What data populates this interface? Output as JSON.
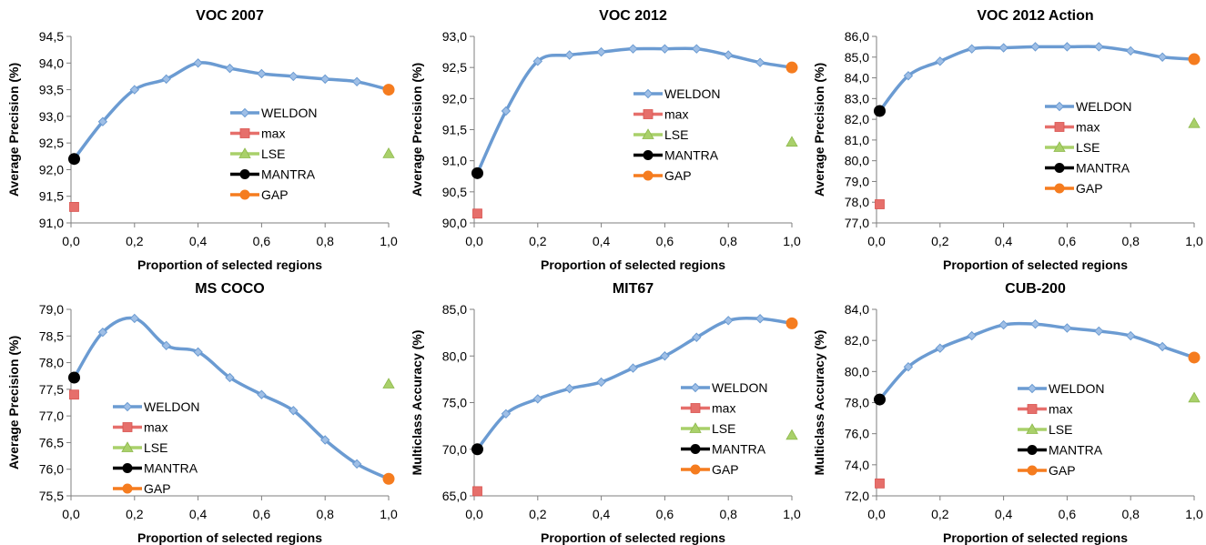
{
  "legend_labels": [
    "WELDON",
    "max",
    "LSE",
    "MANTRA",
    "GAP"
  ],
  "colors": {
    "weldon": "#6b9bd2",
    "weldon_marker": "#9fbfe6",
    "max": "#e66f6b",
    "lse": "#a9d06a",
    "mantra": "#000000",
    "gap": "#f57c1f"
  },
  "chart_data": [
    {
      "type": "line",
      "title": "VOC 2007",
      "xlabel": "Proportion of selected regions",
      "ylabel": "Average Precision (%)",
      "xlim": [
        0,
        1
      ],
      "xticks": [
        "0,0",
        "0,2",
        "0,4",
        "0,6",
        "0,8",
        "1,0"
      ],
      "ylim": [
        91.0,
        94.5
      ],
      "yticks": [
        "91,0",
        "91,5",
        "92,0",
        "92,5",
        "93,0",
        "93,5",
        "94,0",
        "94,5"
      ],
      "series": [
        {
          "name": "WELDON",
          "x": [
            0.01,
            0.1,
            0.2,
            0.3,
            0.4,
            0.5,
            0.6,
            0.7,
            0.8,
            0.9,
            1.0
          ],
          "y": [
            92.2,
            92.9,
            93.5,
            93.7,
            94.0,
            93.9,
            93.8,
            93.75,
            93.7,
            93.65,
            93.5
          ]
        },
        {
          "name": "max",
          "x": [
            0.01
          ],
          "y": [
            91.3
          ]
        },
        {
          "name": "LSE",
          "x": [
            1.0
          ],
          "y": [
            92.3
          ]
        },
        {
          "name": "MANTRA",
          "x": [
            0.01
          ],
          "y": [
            92.2
          ]
        },
        {
          "name": "GAP",
          "x": [
            1.0
          ],
          "y": [
            93.5
          ]
        }
      ]
    },
    {
      "type": "line",
      "title": "VOC 2012",
      "xlabel": "Proportion of selected regions",
      "ylabel": "Average Precision (%)",
      "xlim": [
        0,
        1
      ],
      "xticks": [
        "0,0",
        "0,2",
        "0,4",
        "0,6",
        "0,8",
        "1,0"
      ],
      "ylim": [
        90.0,
        93.0
      ],
      "yticks": [
        "90,0",
        "90,5",
        "91,0",
        "91,5",
        "92,0",
        "92,5",
        "93,0"
      ],
      "series": [
        {
          "name": "WELDON",
          "x": [
            0.01,
            0.1,
            0.2,
            0.3,
            0.4,
            0.5,
            0.6,
            0.7,
            0.8,
            0.9,
            1.0
          ],
          "y": [
            90.8,
            91.8,
            92.6,
            92.7,
            92.75,
            92.8,
            92.8,
            92.8,
            92.7,
            92.58,
            92.5
          ]
        },
        {
          "name": "max",
          "x": [
            0.01
          ],
          "y": [
            90.15
          ]
        },
        {
          "name": "LSE",
          "x": [
            1.0
          ],
          "y": [
            91.3
          ]
        },
        {
          "name": "MANTRA",
          "x": [
            0.01
          ],
          "y": [
            90.8
          ]
        },
        {
          "name": "GAP",
          "x": [
            1.0
          ],
          "y": [
            92.5
          ]
        }
      ]
    },
    {
      "type": "line",
      "title": "VOC 2012 Action",
      "xlabel": "Proportion of selected regions",
      "ylabel": "Average Precision (%)",
      "xlim": [
        0,
        1
      ],
      "xticks": [
        "0,0",
        "0,2",
        "0,4",
        "0,6",
        "0,8",
        "1,0"
      ],
      "ylim": [
        77.0,
        86.0
      ],
      "yticks": [
        "77,0",
        "78,0",
        "79,0",
        "80,0",
        "81,0",
        "82,0",
        "83,0",
        "84,0",
        "85,0",
        "86,0"
      ],
      "series": [
        {
          "name": "WELDON",
          "x": [
            0.01,
            0.1,
            0.2,
            0.3,
            0.4,
            0.5,
            0.6,
            0.7,
            0.8,
            0.9,
            1.0
          ],
          "y": [
            82.4,
            84.1,
            84.8,
            85.4,
            85.45,
            85.5,
            85.5,
            85.5,
            85.3,
            85.0,
            84.9
          ]
        },
        {
          "name": "max",
          "x": [
            0.01
          ],
          "y": [
            77.9
          ]
        },
        {
          "name": "LSE",
          "x": [
            1.0
          ],
          "y": [
            81.8
          ]
        },
        {
          "name": "MANTRA",
          "x": [
            0.01
          ],
          "y": [
            82.4
          ]
        },
        {
          "name": "GAP",
          "x": [
            1.0
          ],
          "y": [
            84.9
          ]
        }
      ]
    },
    {
      "type": "line",
      "title": "MS COCO",
      "xlabel": "Proportion of selected regions",
      "ylabel": "Average Precision (%)",
      "xlim": [
        0,
        1
      ],
      "xticks": [
        "0,0",
        "0,2",
        "0,4",
        "0,6",
        "0,8",
        "1,0"
      ],
      "ylim": [
        75.5,
        79.0
      ],
      "yticks": [
        "75,5",
        "76,0",
        "76,5",
        "77,0",
        "77,5",
        "78,0",
        "78,5",
        "79,0"
      ],
      "series": [
        {
          "name": "WELDON",
          "x": [
            0.01,
            0.1,
            0.2,
            0.3,
            0.4,
            0.5,
            0.6,
            0.7,
            0.8,
            0.9,
            1.0
          ],
          "y": [
            77.72,
            78.57,
            78.83,
            78.32,
            78.2,
            77.72,
            77.4,
            77.1,
            76.55,
            76.1,
            75.82
          ]
        },
        {
          "name": "max",
          "x": [
            0.01
          ],
          "y": [
            77.4
          ]
        },
        {
          "name": "LSE",
          "x": [
            1.0
          ],
          "y": [
            77.6
          ]
        },
        {
          "name": "MANTRA",
          "x": [
            0.01
          ],
          "y": [
            77.72
          ]
        },
        {
          "name": "GAP",
          "x": [
            1.0
          ],
          "y": [
            75.82
          ]
        }
      ]
    },
    {
      "type": "line",
      "title": "MIT67",
      "xlabel": "Proportion of selected regions",
      "ylabel": "Multiclass Accuracy  (%)",
      "xlim": [
        0,
        1
      ],
      "xticks": [
        "0,0",
        "0,2",
        "0,4",
        "0,6",
        "0,8",
        "1,0"
      ],
      "ylim": [
        65.0,
        85.0
      ],
      "yticks": [
        "65,0",
        "70,0",
        "75,0",
        "80,0",
        "85,0"
      ],
      "series": [
        {
          "name": "WELDON",
          "x": [
            0.01,
            0.1,
            0.2,
            0.3,
            0.4,
            0.5,
            0.6,
            0.7,
            0.8,
            0.9,
            1.0
          ],
          "y": [
            70.0,
            73.8,
            75.4,
            76.5,
            77.2,
            78.7,
            80.0,
            82.0,
            83.8,
            84.0,
            83.5
          ]
        },
        {
          "name": "max",
          "x": [
            0.01
          ],
          "y": [
            65.5
          ]
        },
        {
          "name": "LSE",
          "x": [
            1.0
          ],
          "y": [
            71.5
          ]
        },
        {
          "name": "MANTRA",
          "x": [
            0.01
          ],
          "y": [
            70.0
          ]
        },
        {
          "name": "GAP",
          "x": [
            1.0
          ],
          "y": [
            83.5
          ]
        }
      ]
    },
    {
      "type": "line",
      "title": "CUB-200",
      "xlabel": "Proportion of selected regions",
      "ylabel": "Multiclass Accuracy (%)",
      "xlim": [
        0,
        1
      ],
      "xticks": [
        "0,0",
        "0,2",
        "0,4",
        "0,6",
        "0,8",
        "1,0"
      ],
      "ylim": [
        72.0,
        84.0
      ],
      "yticks": [
        "72,0",
        "74,0",
        "76,0",
        "78,0",
        "80,0",
        "82,0",
        "84,0"
      ],
      "series": [
        {
          "name": "WELDON",
          "x": [
            0.01,
            0.1,
            0.2,
            0.3,
            0.4,
            0.5,
            0.6,
            0.7,
            0.8,
            0.9,
            1.0
          ],
          "y": [
            78.2,
            80.3,
            81.5,
            82.3,
            83.0,
            83.05,
            82.8,
            82.6,
            82.3,
            81.6,
            80.9
          ]
        },
        {
          "name": "max",
          "x": [
            0.01
          ],
          "y": [
            72.8
          ]
        },
        {
          "name": "LSE",
          "x": [
            1.0
          ],
          "y": [
            78.3
          ]
        },
        {
          "name": "MANTRA",
          "x": [
            0.01
          ],
          "y": [
            78.2
          ]
        },
        {
          "name": "GAP",
          "x": [
            1.0
          ],
          "y": [
            80.9
          ]
        }
      ]
    }
  ]
}
